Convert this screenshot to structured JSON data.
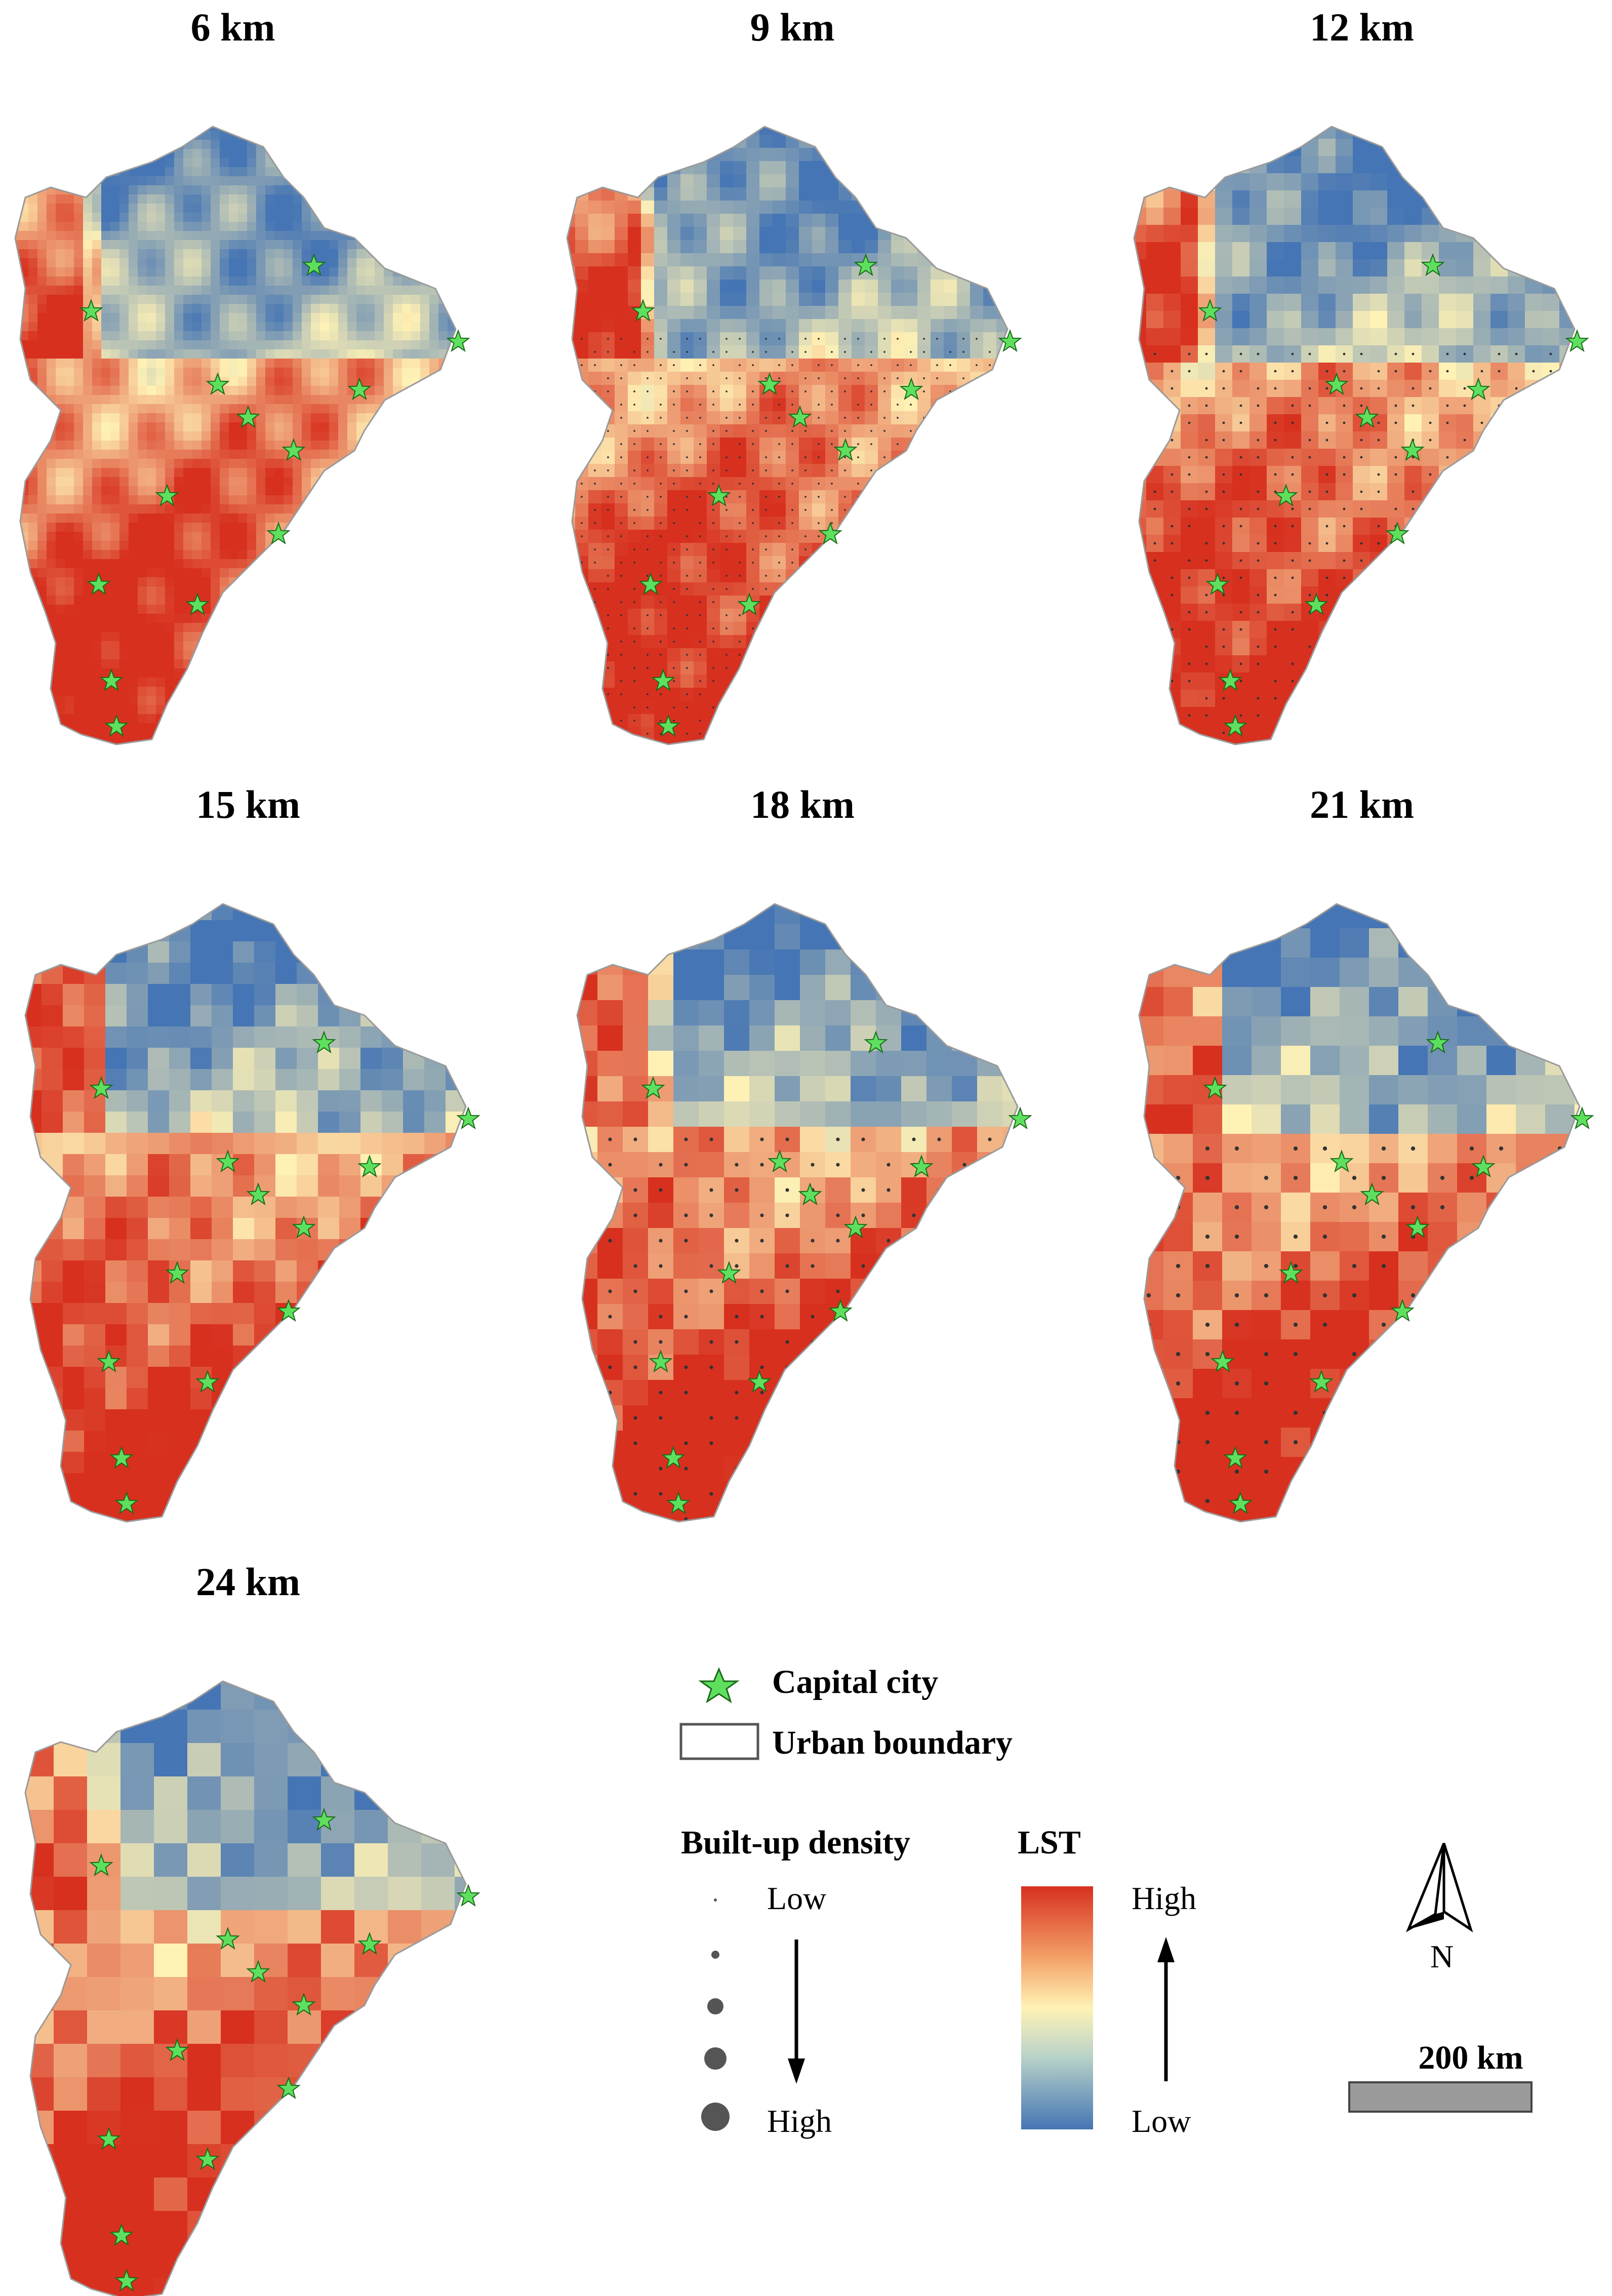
{
  "panels": [
    {
      "title": "6 km"
    },
    {
      "title": "9 km"
    },
    {
      "title": "12 km"
    },
    {
      "title": "15 km"
    },
    {
      "title": "18 km"
    },
    {
      "title": "21 km"
    },
    {
      "title": "24 km"
    }
  ],
  "legend": {
    "capital_city": "Capital city",
    "urban_boundary": "Urban boundary",
    "density_title": "Built-up density",
    "density_low": "Low",
    "density_high": "High",
    "lst_title": "LST",
    "lst_high": "High",
    "lst_low": "Low",
    "north_label": "N",
    "scale_label": "200 km"
  },
  "colors": {
    "lst_high": "#d7301f",
    "lst_mid": "#fff2b5",
    "lst_low": "#4575b4",
    "star": "#5ee05e",
    "scale_bar": "#9a9a9a"
  }
}
